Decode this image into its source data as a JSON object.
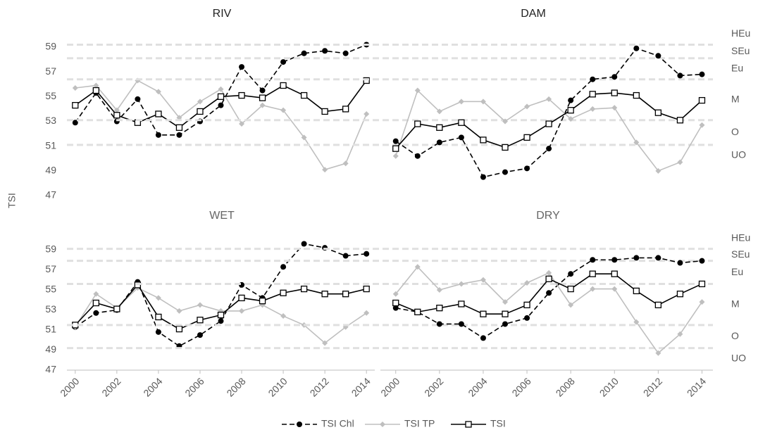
{
  "chart_data": [
    {
      "type": "line",
      "title": "RIV",
      "ylabel": "TSI",
      "x": [
        2000,
        2001,
        2002,
        2003,
        2004,
        2005,
        2006,
        2007,
        2008,
        2009,
        2010,
        2011,
        2012,
        2013,
        2014
      ],
      "xlim": [
        1999.6,
        2014.4
      ],
      "ylim": [
        47,
        60
      ],
      "yticks": [
        47,
        49,
        51,
        53,
        55,
        57,
        59
      ],
      "series": [
        {
          "name": "TSI Chl",
          "color": "#000000",
          "dashed": true,
          "marker": "circle",
          "values": [
            52.9,
            55.3,
            53.0,
            54.8,
            51.9,
            51.9,
            53.0,
            54.3,
            57.4,
            55.5,
            57.8,
            58.5,
            58.7,
            58.5,
            59.2
          ]
        },
        {
          "name": "TSI TP",
          "color": "#bfbfbf",
          "dashed": false,
          "marker": "diamond",
          "values": [
            55.7,
            55.9,
            53.9,
            56.3,
            55.4,
            53.3,
            54.6,
            55.6,
            52.8,
            54.3,
            53.9,
            51.7,
            49.1,
            49.6,
            53.6
          ]
        },
        {
          "name": "TSI",
          "color": "#000000",
          "dashed": false,
          "marker": "square",
          "values": [
            54.3,
            55.5,
            53.5,
            52.9,
            53.6,
            52.5,
            53.8,
            55.0,
            55.1,
            54.9,
            55.9,
            55.1,
            53.8,
            54.0,
            56.3
          ]
        }
      ]
    },
    {
      "type": "line",
      "title": "DAM",
      "x": [
        2000,
        2001,
        2002,
        2003,
        2004,
        2005,
        2006,
        2007,
        2008,
        2009,
        2010,
        2011,
        2012,
        2013,
        2014
      ],
      "xlim": [
        1999.3,
        2014.5
      ],
      "ylim": [
        47,
        60
      ],
      "band_lines": [
        59.2,
        58.1,
        56.4,
        53.1,
        51.1
      ],
      "band_labels": [
        "HEu",
        "SEu",
        "Eu",
        "M",
        "O",
        "UO"
      ],
      "series": [
        {
          "name": "TSI Chl",
          "color": "#000000",
          "dashed": true,
          "marker": "circle",
          "values": [
            51.4,
            50.2,
            51.3,
            51.7,
            48.5,
            48.9,
            49.2,
            50.8,
            54.7,
            56.4,
            56.6,
            58.9,
            58.3,
            56.7,
            56.8
          ]
        },
        {
          "name": "TSI TP",
          "color": "#bfbfbf",
          "dashed": false,
          "marker": "diamond",
          "values": [
            50.2,
            55.5,
            53.8,
            54.6,
            54.6,
            53.0,
            54.2,
            54.8,
            53.2,
            54.0,
            54.1,
            51.3,
            49.0,
            49.7,
            52.7
          ]
        },
        {
          "name": "TSI",
          "color": "#000000",
          "dashed": false,
          "marker": "square",
          "values": [
            50.8,
            52.8,
            52.5,
            52.9,
            51.5,
            50.9,
            51.7,
            52.8,
            53.9,
            55.2,
            55.3,
            55.1,
            53.7,
            53.1,
            54.7
          ]
        }
      ]
    },
    {
      "type": "line",
      "title": "WET",
      "x": [
        2000,
        2001,
        2002,
        2003,
        2004,
        2005,
        2006,
        2007,
        2008,
        2009,
        2010,
        2011,
        2012,
        2013,
        2014
      ],
      "xlim": [
        1999.6,
        2014.4
      ],
      "ylim": [
        47,
        60
      ],
      "yticks": [
        47,
        49,
        51,
        53,
        55,
        57,
        59
      ],
      "xticks": [
        2000,
        2002,
        2004,
        2006,
        2008,
        2010,
        2012,
        2014
      ],
      "series": [
        {
          "name": "TSI Chl",
          "color": "#000000",
          "dashed": true,
          "marker": "circle",
          "values": [
            51.3,
            52.7,
            53.0,
            55.8,
            50.8,
            49.4,
            50.5,
            51.9,
            55.5,
            54.2,
            57.3,
            59.6,
            59.2,
            58.4,
            58.6
          ]
        },
        {
          "name": "TSI TP",
          "color": "#bfbfbf",
          "dashed": false,
          "marker": "diamond",
          "values": [
            51.3,
            54.6,
            53.2,
            55.2,
            54.2,
            52.9,
            53.5,
            52.9,
            52.9,
            53.5,
            52.4,
            51.5,
            49.7,
            51.3,
            52.7
          ]
        },
        {
          "name": "TSI",
          "color": "#000000",
          "dashed": false,
          "marker": "square",
          "values": [
            51.5,
            53.7,
            53.1,
            55.5,
            52.3,
            51.1,
            52.0,
            52.5,
            54.2,
            53.9,
            54.7,
            55.1,
            54.6,
            54.6,
            55.1
          ]
        }
      ]
    },
    {
      "type": "line",
      "title": "DRY",
      "x": [
        2000,
        2001,
        2002,
        2003,
        2004,
        2005,
        2006,
        2007,
        2008,
        2009,
        2010,
        2011,
        2012,
        2013,
        2014
      ],
      "xlim": [
        1999.3,
        2014.5
      ],
      "ylim": [
        47,
        60
      ],
      "xticks": [
        2000,
        2002,
        2004,
        2006,
        2008,
        2010,
        2012,
        2014
      ],
      "band_lines": [
        59.1,
        57.9,
        55.6,
        51.5,
        49.2
      ],
      "band_labels": [
        "HEu",
        "SEu",
        "Eu",
        "M",
        "O",
        "UO"
      ],
      "series": [
        {
          "name": "TSI Chl",
          "color": "#000000",
          "dashed": true,
          "marker": "circle",
          "values": [
            53.2,
            52.8,
            51.6,
            51.6,
            50.2,
            51.6,
            52.2,
            54.7,
            56.6,
            58.0,
            58.0,
            58.2,
            58.2,
            57.7,
            57.9
          ]
        },
        {
          "name": "TSI TP",
          "color": "#bfbfbf",
          "dashed": false,
          "marker": "diamond",
          "values": [
            54.6,
            57.3,
            55.0,
            55.6,
            56.0,
            53.8,
            55.7,
            56.7,
            53.5,
            55.1,
            55.1,
            51.8,
            48.7,
            50.6,
            53.8
          ]
        },
        {
          "name": "TSI",
          "color": "#000000",
          "dashed": false,
          "marker": "square",
          "values": [
            53.7,
            52.8,
            53.2,
            53.6,
            52.6,
            52.6,
            53.5,
            56.1,
            55.1,
            56.6,
            56.6,
            54.9,
            53.5,
            54.6,
            55.6
          ]
        }
      ]
    }
  ]
}
